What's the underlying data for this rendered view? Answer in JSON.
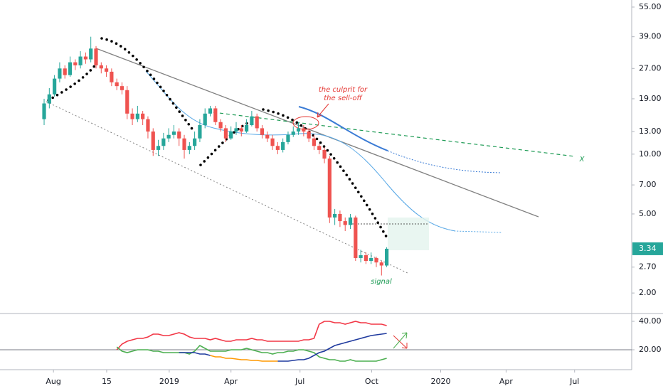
{
  "chart_data": [
    {
      "type": "candlestick",
      "open": [
        15,
        18,
        20,
        24,
        27,
        25,
        29,
        28,
        31,
        30,
        34,
        28,
        27,
        26,
        23,
        22,
        21,
        16,
        15,
        16,
        15,
        13,
        10.5,
        11,
        12,
        12.5,
        13,
        12,
        10.5,
        11,
        12,
        14,
        16,
        17,
        14.5,
        13.5,
        12,
        13,
        13.5,
        13,
        14,
        15.5,
        13.5,
        12.5,
        12,
        11,
        10.5,
        11.5,
        12.5,
        13,
        13.5,
        13,
        12,
        11,
        10.5,
        9.5,
        4.8,
        5,
        4.6,
        4.4,
        4.8,
        3.0,
        3.1,
        2.9,
        3.0,
        2.85,
        2.75
      ],
      "high": [
        19,
        21.5,
        25,
        29,
        28,
        31,
        30,
        33,
        32.5,
        39,
        35,
        29,
        28,
        27,
        24,
        23,
        22,
        17,
        17.5,
        16.5,
        15.5,
        13.5,
        11.8,
        12.8,
        13.5,
        14,
        13.5,
        12.5,
        11.5,
        13,
        15,
        17,
        17.5,
        17.5,
        15,
        14,
        13.8,
        14.5,
        14,
        15,
        16.5,
        16,
        14,
        13,
        12.5,
        11.5,
        12,
        13,
        13.8,
        14.5,
        14,
        13.5,
        12.5,
        11.3,
        10.8,
        9.8,
        5.3,
        5.2,
        4.8,
        5,
        4.9,
        3.3,
        3.2,
        3.2,
        3.05,
        2.9,
        3.4
      ],
      "low": [
        14,
        17,
        19.5,
        23,
        24,
        24.5,
        26.5,
        27,
        28.5,
        29,
        27,
        25.5,
        24.5,
        22,
        21,
        20,
        15,
        14,
        14.5,
        14,
        12,
        9.8,
        9.8,
        10.5,
        11.5,
        12,
        11,
        9.5,
        10,
        10.5,
        11.5,
        13.5,
        15.5,
        14,
        13,
        11.5,
        11.8,
        12.5,
        12.3,
        12.8,
        13.8,
        13,
        12,
        11.5,
        10.5,
        10,
        10.2,
        11.2,
        12.2,
        12.5,
        12.3,
        11.5,
        10.5,
        10,
        9,
        4.5,
        4.4,
        4.3,
        4.1,
        4.2,
        2.9,
        2.85,
        2.8,
        2.8,
        2.7,
        2.45,
        2.7
      ],
      "close": [
        18,
        20,
        24,
        27,
        25,
        29,
        28,
        31,
        30,
        34,
        28,
        27,
        26,
        23,
        22,
        21,
        16,
        15,
        16,
        15,
        13,
        10.5,
        11,
        12,
        12.5,
        13,
        12,
        10.5,
        11,
        12,
        14,
        16,
        17,
        14.5,
        13.5,
        12,
        13,
        13.5,
        13,
        14,
        15.5,
        13.5,
        12.5,
        12,
        11,
        10.5,
        11.5,
        12.5,
        13,
        13.5,
        13,
        12,
        11,
        10.5,
        9.5,
        4.8,
        5,
        4.6,
        4.4,
        4.8,
        3.0,
        3.1,
        2.9,
        3.0,
        2.85,
        2.75,
        3.34
      ],
      "up_color": "#26a69a",
      "down_color": "#ef5350",
      "log_scale": true,
      "ylim": [
        1.59,
        59.7
      ],
      "yticks": [
        {
          "value": 55,
          "label": "55.00"
        },
        {
          "value": 39,
          "label": "39.00"
        },
        {
          "value": 27,
          "label": "27.00"
        },
        {
          "value": 19,
          "label": "19.00"
        },
        {
          "value": 13,
          "label": "13.00"
        },
        {
          "value": 10,
          "label": "10.00"
        },
        {
          "value": 7,
          "label": "7.00"
        },
        {
          "value": 5,
          "label": "5.00"
        },
        {
          "value": 2.7,
          "label": "2.70"
        },
        {
          "value": 2,
          "label": "2.00"
        }
      ],
      "xlim": [
        -8.5,
        113.2
      ],
      "xticks": [
        {
          "value": 1.8,
          "label": "Aug"
        },
        {
          "value": 12.05,
          "label": "15"
        },
        {
          "value": 24.1,
          "label": "2019"
        },
        {
          "value": 36,
          "label": "Apr"
        },
        {
          "value": 49.3,
          "label": "Jul"
        },
        {
          "value": 63.1,
          "label": "Oct"
        },
        {
          "value": 76.4,
          "label": "2020"
        },
        {
          "value": 89,
          "label": "Apr"
        },
        {
          "value": 102.2,
          "label": "Jul"
        }
      ],
      "annotations": [
        "the culprit for",
        "the sell-off",
        "signal",
        "X"
      ]
    },
    {
      "type": "line",
      "series": [
        {
          "color": "#f23645",
          "values": [
            null,
            null,
            null,
            null,
            null,
            null,
            null,
            null,
            null,
            null,
            null,
            null,
            null,
            null,
            20,
            24,
            26,
            27,
            28,
            28,
            29,
            31,
            31,
            30,
            30,
            31,
            32,
            31,
            29,
            28,
            28,
            28,
            27,
            28,
            27,
            26,
            26,
            27,
            27,
            27,
            28,
            27,
            27,
            26,
            26,
            26,
            26,
            26,
            26,
            26,
            27,
            27,
            28,
            38,
            40,
            40,
            39,
            39,
            38,
            39,
            40,
            39,
            39,
            38,
            38,
            38,
            37
          ]
        },
        {
          "color": "#4caf50",
          "values": [
            null,
            null,
            null,
            null,
            null,
            null,
            null,
            null,
            null,
            null,
            null,
            null,
            null,
            null,
            22,
            19,
            18,
            19,
            20,
            20,
            20,
            19,
            19,
            18,
            18,
            18,
            18,
            18,
            17,
            19,
            23,
            21,
            19,
            19,
            19,
            19,
            20,
            20,
            20,
            21,
            20,
            19,
            18,
            18,
            17,
            18,
            18,
            19,
            19,
            20,
            20,
            19,
            18,
            15,
            14,
            13,
            13,
            12,
            12,
            13,
            12,
            12,
            12,
            12,
            12,
            13,
            14
          ]
        },
        {
          "color": "#1f3a9e",
          "values": [
            null,
            null,
            null,
            null,
            null,
            null,
            null,
            null,
            null,
            null,
            null,
            null,
            null,
            null,
            null,
            null,
            null,
            null,
            null,
            null,
            null,
            null,
            null,
            null,
            null,
            null,
            18,
            18,
            18,
            18,
            17,
            17,
            16,
            null,
            null,
            null,
            null,
            null,
            null,
            null,
            null,
            null,
            null,
            null,
            null,
            12,
            12,
            12,
            12.5,
            13,
            13,
            14,
            16,
            18,
            19,
            21,
            23,
            24,
            25,
            26,
            27,
            28,
            29,
            30,
            30.5,
            31,
            31.5
          ]
        },
        {
          "color": "#ff9800",
          "values": [
            null,
            null,
            null,
            null,
            null,
            null,
            null,
            null,
            null,
            null,
            null,
            null,
            null,
            null,
            null,
            null,
            null,
            null,
            null,
            null,
            null,
            null,
            null,
            null,
            null,
            null,
            null,
            null,
            null,
            null,
            null,
            null,
            16,
            15,
            15,
            14,
            14,
            13.5,
            13,
            13,
            12.5,
            12.5,
            12,
            12,
            12,
            12,
            null,
            null,
            null,
            null,
            null,
            null,
            null,
            null,
            null,
            null,
            null,
            null,
            null,
            null,
            null,
            null,
            null,
            null,
            null,
            null,
            null
          ]
        }
      ],
      "ylim": [
        6,
        45
      ],
      "yticks": [
        {
          "value": 40,
          "label": "40.00"
        },
        {
          "value": 20,
          "label": "20.00"
        }
      ]
    }
  ]
}
